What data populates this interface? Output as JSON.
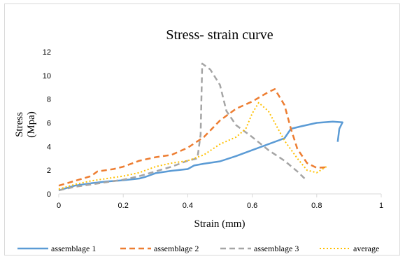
{
  "chart_data": {
    "type": "line",
    "title": "Stress- strain curve",
    "xlabel": "Strain (mm)",
    "ylabel": [
      "Stress",
      "(Mpa)"
    ],
    "xlim": [
      0,
      1
    ],
    "ylim": [
      0,
      12
    ],
    "xticks": [
      "0",
      "0.2",
      "0.4",
      "0.6",
      "0.8",
      "1"
    ],
    "yticks": [
      "0",
      "2",
      "4",
      "6",
      "8",
      "10",
      "12"
    ],
    "grid": false,
    "legend_position": "bottom",
    "series": [
      {
        "name": "assemblage 1",
        "color": "#5b9bd5",
        "dash": "solid",
        "points": [
          [
            0,
            0.3
          ],
          [
            0.05,
            0.7
          ],
          [
            0.1,
            0.9
          ],
          [
            0.15,
            1.05
          ],
          [
            0.2,
            1.15
          ],
          [
            0.25,
            1.3
          ],
          [
            0.27,
            1.45
          ],
          [
            0.3,
            1.75
          ],
          [
            0.35,
            1.95
          ],
          [
            0.4,
            2.1
          ],
          [
            0.42,
            2.4
          ],
          [
            0.45,
            2.55
          ],
          [
            0.5,
            2.75
          ],
          [
            0.55,
            3.2
          ],
          [
            0.6,
            3.7
          ],
          [
            0.65,
            4.2
          ],
          [
            0.7,
            4.7
          ],
          [
            0.72,
            5.5
          ],
          [
            0.75,
            5.7
          ],
          [
            0.8,
            6.0
          ],
          [
            0.85,
            6.1
          ],
          [
            0.88,
            6.05
          ],
          [
            0.87,
            5.5
          ],
          [
            0.865,
            4.4
          ]
        ]
      },
      {
        "name": "assemblage 2",
        "color": "#ed7d31",
        "dash": "8,5",
        "points": [
          [
            0,
            0.7
          ],
          [
            0.05,
            1.1
          ],
          [
            0.1,
            1.5
          ],
          [
            0.12,
            1.9
          ],
          [
            0.17,
            2.1
          ],
          [
            0.2,
            2.3
          ],
          [
            0.25,
            2.8
          ],
          [
            0.3,
            3.1
          ],
          [
            0.35,
            3.3
          ],
          [
            0.4,
            3.9
          ],
          [
            0.45,
            4.8
          ],
          [
            0.5,
            6.2
          ],
          [
            0.55,
            7.2
          ],
          [
            0.6,
            7.8
          ],
          [
            0.65,
            8.6
          ],
          [
            0.67,
            8.85
          ],
          [
            0.7,
            7.5
          ],
          [
            0.72,
            5.5
          ],
          [
            0.74,
            3.8
          ],
          [
            0.77,
            2.6
          ],
          [
            0.8,
            2.2
          ],
          [
            0.83,
            2.25
          ]
        ]
      },
      {
        "name": "assemblage 3",
        "color": "#a5a5a5",
        "dash": "8,5",
        "points": [
          [
            0,
            0.3
          ],
          [
            0.05,
            0.6
          ],
          [
            0.1,
            0.8
          ],
          [
            0.15,
            1.0
          ],
          [
            0.2,
            1.2
          ],
          [
            0.25,
            1.5
          ],
          [
            0.3,
            1.9
          ],
          [
            0.35,
            2.3
          ],
          [
            0.4,
            2.8
          ],
          [
            0.43,
            3.0
          ],
          [
            0.44,
            5.0
          ],
          [
            0.445,
            11.0
          ],
          [
            0.47,
            10.5
          ],
          [
            0.5,
            9.2
          ],
          [
            0.52,
            7.0
          ],
          [
            0.55,
            5.8
          ],
          [
            0.6,
            4.8
          ],
          [
            0.65,
            3.7
          ],
          [
            0.7,
            2.8
          ],
          [
            0.74,
            1.9
          ],
          [
            0.77,
            1.1
          ]
        ]
      },
      {
        "name": "average",
        "color": "#ffc000",
        "dash": "2,3",
        "points": [
          [
            0,
            0.4
          ],
          [
            0.05,
            0.8
          ],
          [
            0.1,
            1.1
          ],
          [
            0.15,
            1.3
          ],
          [
            0.2,
            1.5
          ],
          [
            0.25,
            1.8
          ],
          [
            0.3,
            2.3
          ],
          [
            0.35,
            2.6
          ],
          [
            0.4,
            2.8
          ],
          [
            0.45,
            3.3
          ],
          [
            0.5,
            4.2
          ],
          [
            0.55,
            4.8
          ],
          [
            0.58,
            5.5
          ],
          [
            0.6,
            6.8
          ],
          [
            0.62,
            7.7
          ],
          [
            0.65,
            7.0
          ],
          [
            0.68,
            5.5
          ],
          [
            0.7,
            4.5
          ],
          [
            0.74,
            3.0
          ],
          [
            0.77,
            2.0
          ],
          [
            0.8,
            1.8
          ],
          [
            0.83,
            2.3
          ]
        ]
      }
    ]
  }
}
